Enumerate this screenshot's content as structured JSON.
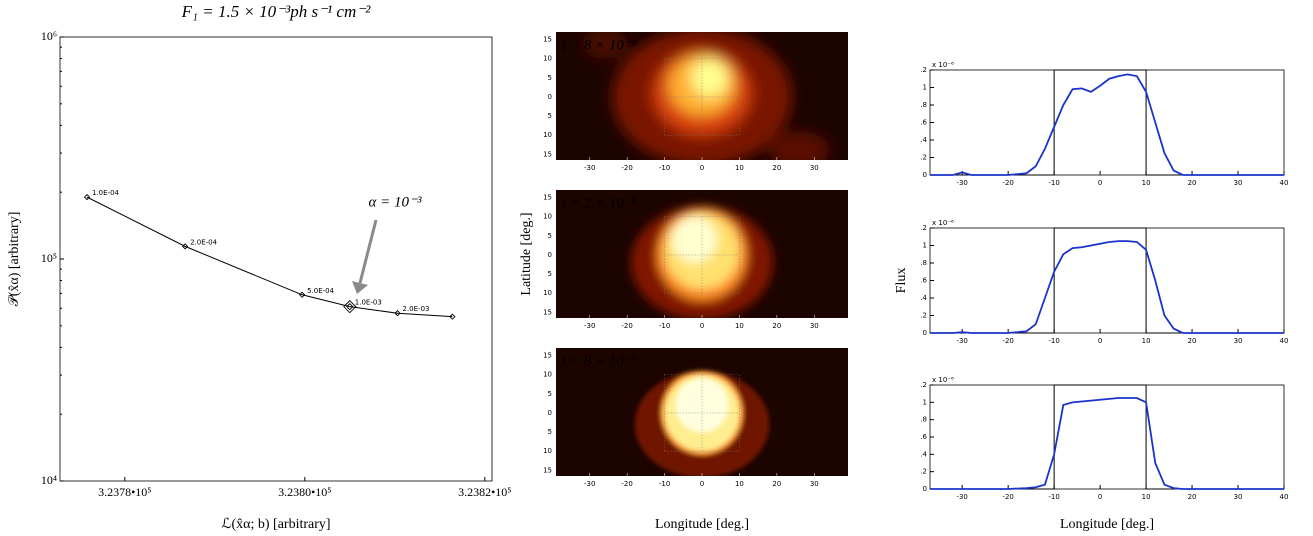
{
  "chart_data": [
    {
      "type": "line",
      "title": "F₁ = 1.5 × 10⁻³ph s⁻¹ cm⁻²",
      "xlabel": "ℒ(x̂α; b) [arbitrary]",
      "ylabel": "𝒫(x̂α) [arbitrary]",
      "x": [
        323775.8,
        323786.7,
        323799.7,
        323805.0,
        323810.3,
        323816.4
      ],
      "values": [
        190000,
        114000,
        69000,
        61000,
        57000,
        55000
      ],
      "point_labels": [
        "1.0E-04",
        "2.0E-04",
        "5.0E-04",
        "1.0E-03",
        "2.0E-03",
        null
      ],
      "color": "#000000",
      "annotation": "α = 10⁻³",
      "xlim": [
        323772.8,
        323820.8
      ],
      "xticks": [
        {
          "value": 323780,
          "label": "3.2378•10⁵"
        },
        {
          "value": 323800,
          "label": "3.2380•10⁵"
        },
        {
          "value": 323820,
          "label": "3.2382•10⁵"
        }
      ],
      "ylim": [
        10000,
        1000000
      ],
      "ylog": true,
      "yticks": [
        {
          "value": 10000,
          "label": "10⁴"
        },
        {
          "value": 100000,
          "label": "10⁵"
        },
        {
          "value": 1000000,
          "label": "10⁶"
        }
      ]
    },
    {
      "type": "image",
      "label": "t = 8 × 10⁻⁸",
      "xlim": [
        -39,
        39
      ],
      "ylim": [
        -16.5,
        17
      ],
      "xticks": [
        -30,
        -20,
        -10,
        0,
        10,
        20,
        30
      ],
      "yticks": [
        {
          "value": -15,
          "label": "15"
        },
        {
          "value": -10,
          "label": "10"
        },
        {
          "value": -5,
          "label": "5"
        },
        0,
        5,
        10,
        15
      ]
    },
    {
      "type": "image",
      "label": "t = 2 × 10⁻⁸",
      "ylabel": "Latitude [deg.]",
      "xlim": [
        -39,
        39
      ],
      "ylim": [
        -16.5,
        17
      ],
      "xticks": [
        -30,
        -20,
        -10,
        0,
        10,
        20,
        30
      ],
      "yticks": [
        {
          "value": -15,
          "label": "15"
        },
        {
          "value": -10,
          "label": "10"
        },
        {
          "value": -5,
          "label": "5"
        },
        0,
        5,
        10,
        15
      ]
    },
    {
      "type": "image",
      "label": "t = 8 × 10⁻⁹",
      "xlabel": "Longitude [deg.]",
      "xlim": [
        -39,
        39
      ],
      "ylim": [
        -16.5,
        17
      ],
      "xticks": [
        -30,
        -20,
        -10,
        0,
        10,
        20,
        30
      ],
      "yticks": [
        {
          "value": -15,
          "label": "15"
        },
        {
          "value": -10,
          "label": "10"
        },
        {
          "value": -5,
          "label": "5"
        },
        0,
        5,
        10,
        15
      ]
    },
    {
      "type": "line",
      "y_multiplier": "x 10⁻⁶",
      "xlim": [
        -37,
        40
      ],
      "xticks": [
        -30,
        -20,
        -10,
        0,
        10,
        20,
        30,
        40
      ],
      "ylim": [
        0,
        1.2
      ],
      "yticks": [
        0,
        {
          "value": 0.2,
          "label": ".2"
        },
        {
          "value": 0.4,
          "label": ".4"
        },
        {
          "value": 0.6,
          "label": ".6"
        },
        {
          "value": 0.8,
          "label": ".8"
        },
        1,
        {
          "value": 1.2,
          "label": ".2"
        }
      ],
      "series": [
        {
          "color": "#000000",
          "x": [
            -37,
            -10,
            -10,
            10,
            10,
            40
          ],
          "values": [
            0,
            0,
            1.2,
            1.2,
            0,
            0
          ]
        },
        {
          "color": "#1a33cc",
          "x": [
            -37,
            -32,
            -30,
            -28,
            -20,
            -16,
            -14,
            -12,
            -10,
            -8,
            -6,
            -4,
            -2,
            0,
            2,
            4,
            6,
            8,
            10,
            12,
            14,
            16,
            18,
            40
          ],
          "values": [
            0,
            0,
            0.03,
            0,
            0,
            0.02,
            0.1,
            0.3,
            0.55,
            0.8,
            0.98,
            0.99,
            0.95,
            1.02,
            1.1,
            1.13,
            1.15,
            1.13,
            0.95,
            0.6,
            0.25,
            0.05,
            0,
            0
          ]
        }
      ]
    },
    {
      "type": "line",
      "y_multiplier": "x 10⁻⁶",
      "ylabel": "Flux",
      "xlim": [
        -37,
        40
      ],
      "xticks": [
        -30,
        -20,
        -10,
        0,
        10,
        20,
        30,
        40
      ],
      "ylim": [
        0,
        1.2
      ],
      "yticks": [
        0,
        {
          "value": 0.2,
          "label": ".2"
        },
        {
          "value": 0.4,
          "label": ".4"
        },
        {
          "value": 0.6,
          "label": ".6"
        },
        {
          "value": 0.8,
          "label": ".8"
        },
        1,
        {
          "value": 1.2,
          "label": ".2"
        }
      ],
      "series": [
        {
          "color": "#000000",
          "x": [
            -37,
            -10,
            -10,
            10,
            10,
            40
          ],
          "values": [
            0,
            0,
            1.2,
            1.2,
            0,
            0
          ]
        },
        {
          "color": "#1a33cc",
          "x": [
            -37,
            -32,
            -30,
            -28,
            -20,
            -16,
            -14,
            -12,
            -10,
            -8,
            -6,
            -4,
            -2,
            0,
            2,
            4,
            6,
            8,
            10,
            12,
            14,
            16,
            18,
            40
          ],
          "values": [
            0,
            0,
            0.01,
            0,
            0,
            0.02,
            0.1,
            0.4,
            0.7,
            0.9,
            0.97,
            0.98,
            1.0,
            1.02,
            1.04,
            1.05,
            1.05,
            1.04,
            0.95,
            0.6,
            0.2,
            0.05,
            0,
            0
          ]
        }
      ]
    },
    {
      "type": "line",
      "y_multiplier": "x 10⁻⁶",
      "xlabel": "Longitude [deg.]",
      "xlim": [
        -37,
        40
      ],
      "xticks": [
        -30,
        -20,
        -10,
        0,
        10,
        20,
        30,
        40
      ],
      "ylim": [
        0,
        1.2
      ],
      "yticks": [
        0,
        {
          "value": 0.2,
          "label": ".2"
        },
        {
          "value": 0.4,
          "label": ".4"
        },
        {
          "value": 0.6,
          "label": ".6"
        },
        {
          "value": 0.8,
          "label": ".8"
        },
        1,
        {
          "value": 1.2,
          "label": ".2"
        }
      ],
      "series": [
        {
          "color": "#000000",
          "x": [
            -37,
            -10,
            -10,
            10,
            10,
            40
          ],
          "values": [
            0,
            0,
            1.2,
            1.2,
            0,
            0
          ]
        },
        {
          "color": "#1a33cc",
          "x": [
            -37,
            -32,
            -30,
            -28,
            -20,
            -16,
            -14,
            -12,
            -10,
            -8,
            -6,
            -4,
            -2,
            0,
            2,
            4,
            6,
            8,
            10,
            12,
            14,
            16,
            18,
            40
          ],
          "values": [
            0,
            0,
            0,
            0,
            0,
            0.01,
            0.02,
            0.05,
            0.4,
            0.97,
            1.0,
            1.01,
            1.02,
            1.03,
            1.04,
            1.05,
            1.05,
            1.05,
            1.0,
            0.3,
            0.05,
            0.01,
            0,
            0
          ]
        }
      ]
    }
  ]
}
